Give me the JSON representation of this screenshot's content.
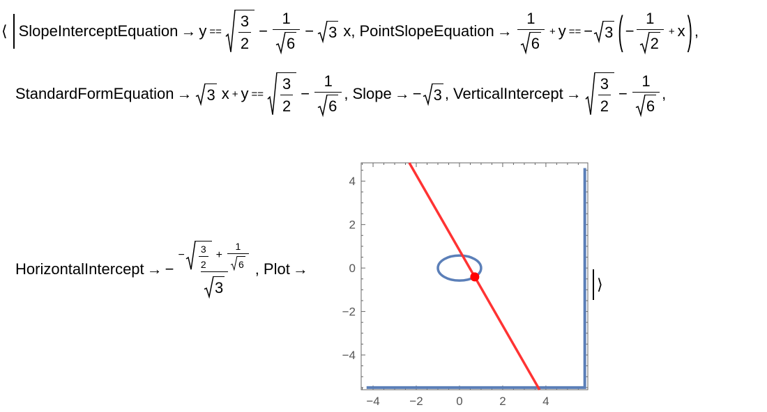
{
  "sym": {
    "open": "⟨",
    "close": "⟩",
    "arrow": "→",
    "eq": "==",
    "minus": "−",
    "plus": "+",
    "comma": ","
  },
  "vars": {
    "x": "x",
    "y": "y"
  },
  "nums": {
    "one": "1",
    "two": "2",
    "three": "3",
    "six": "6"
  },
  "labels": {
    "slope_intercept": "SlopeInterceptEquation",
    "point_slope": "PointSlopeEquation",
    "standard_form": "StandardFormEquation",
    "slope": "Slope",
    "vertical_intercept": "VerticalIntercept",
    "horizontal_intercept": "HorizontalIntercept",
    "plot": "Plot"
  },
  "chart_data": {
    "type": "line",
    "xlim": [
      -4.55,
      5.94
    ],
    "ylim": [
      -5.6,
      4.84
    ],
    "x_ticks": [
      "−4",
      "−2",
      "0",
      "2",
      "4"
    ],
    "x_tick_values": [
      -4,
      -2,
      0,
      2,
      4
    ],
    "y_ticks": [
      "4",
      "2",
      "0",
      "−2",
      "−4"
    ],
    "y_tick_values": [
      4,
      2,
      0,
      -2,
      -4
    ],
    "frame": true,
    "grid": false,
    "line": {
      "slope": -1.7320508,
      "intercept": 0.8164966,
      "color": "#ff3333"
    },
    "point": {
      "x": 0.7071068,
      "y": -0.4082483,
      "color": "#ff0000"
    },
    "ellipse": {
      "cx": 0,
      "cy": 0,
      "rx": 1,
      "ry": 0.57735,
      "color": "#5b7fb8"
    },
    "corner_path": {
      "points": [
        [
          -4.3,
          -5.5
        ],
        [
          5.8,
          -5.5
        ],
        [
          5.8,
          4.6
        ]
      ],
      "color": "#5b7fb8"
    }
  }
}
